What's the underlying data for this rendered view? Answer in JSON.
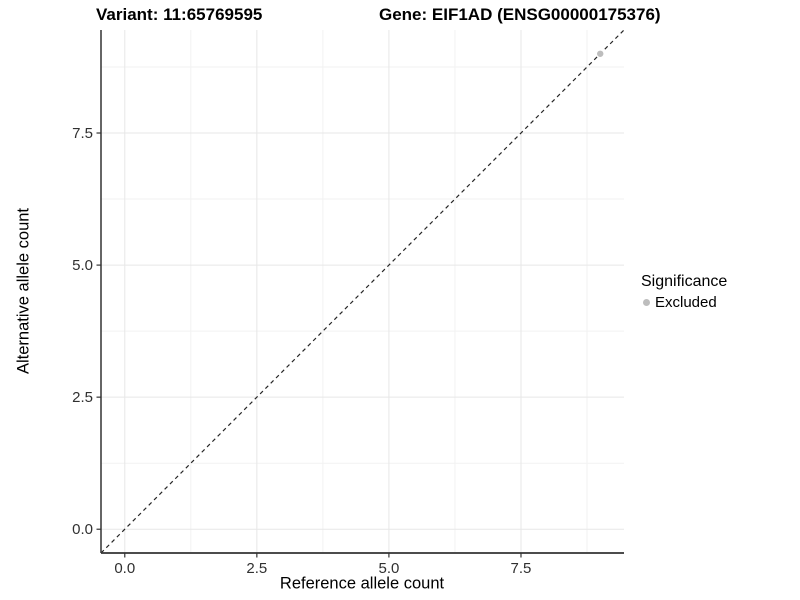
{
  "header": {
    "variant_title": "Variant: 11:65769595",
    "gene_title": "Gene: EIF1AD (ENSG00000175376)"
  },
  "chart_data": {
    "type": "scatter",
    "title": "Variant: 11:65769595   Gene: EIF1AD (ENSG00000175376)",
    "xlabel": "Reference allele count",
    "ylabel": "Alternative allele count",
    "xlim": [
      -0.45,
      9.45
    ],
    "ylim": [
      -0.45,
      9.45
    ],
    "x_ticks": {
      "values": [
        0,
        2.5,
        5,
        7.5
      ],
      "labels": [
        "0.0",
        "2.5",
        "5.0",
        "7.5"
      ]
    },
    "y_ticks": {
      "values": [
        0,
        2.5,
        5,
        7.5
      ],
      "labels": [
        "0.0",
        "2.5",
        "5.0",
        "7.5"
      ]
    },
    "minor_grid": [
      1.25,
      3.75,
      6.25,
      8.75
    ],
    "grid": true,
    "legend_position": "right",
    "identity_line": {
      "slope": 1,
      "intercept": 0,
      "style": "dashed"
    },
    "series": [
      {
        "name": "Excluded",
        "color": "#bdbdbd",
        "point_radius": 3.2,
        "points": [
          {
            "x": 9,
            "y": 9
          }
        ]
      }
    ],
    "colors": {
      "major_grid": "#e7e7e7",
      "minor_grid": "#f2f2f2",
      "axis_line": "#333333",
      "tick_mark": "#333333",
      "tick_label": "#303030",
      "identity_line": "#262626",
      "background": "#ffffff"
    }
  },
  "legend": {
    "title": "Significance",
    "items": [
      {
        "label": "Excluded",
        "color": "#bdbdbd"
      }
    ]
  }
}
